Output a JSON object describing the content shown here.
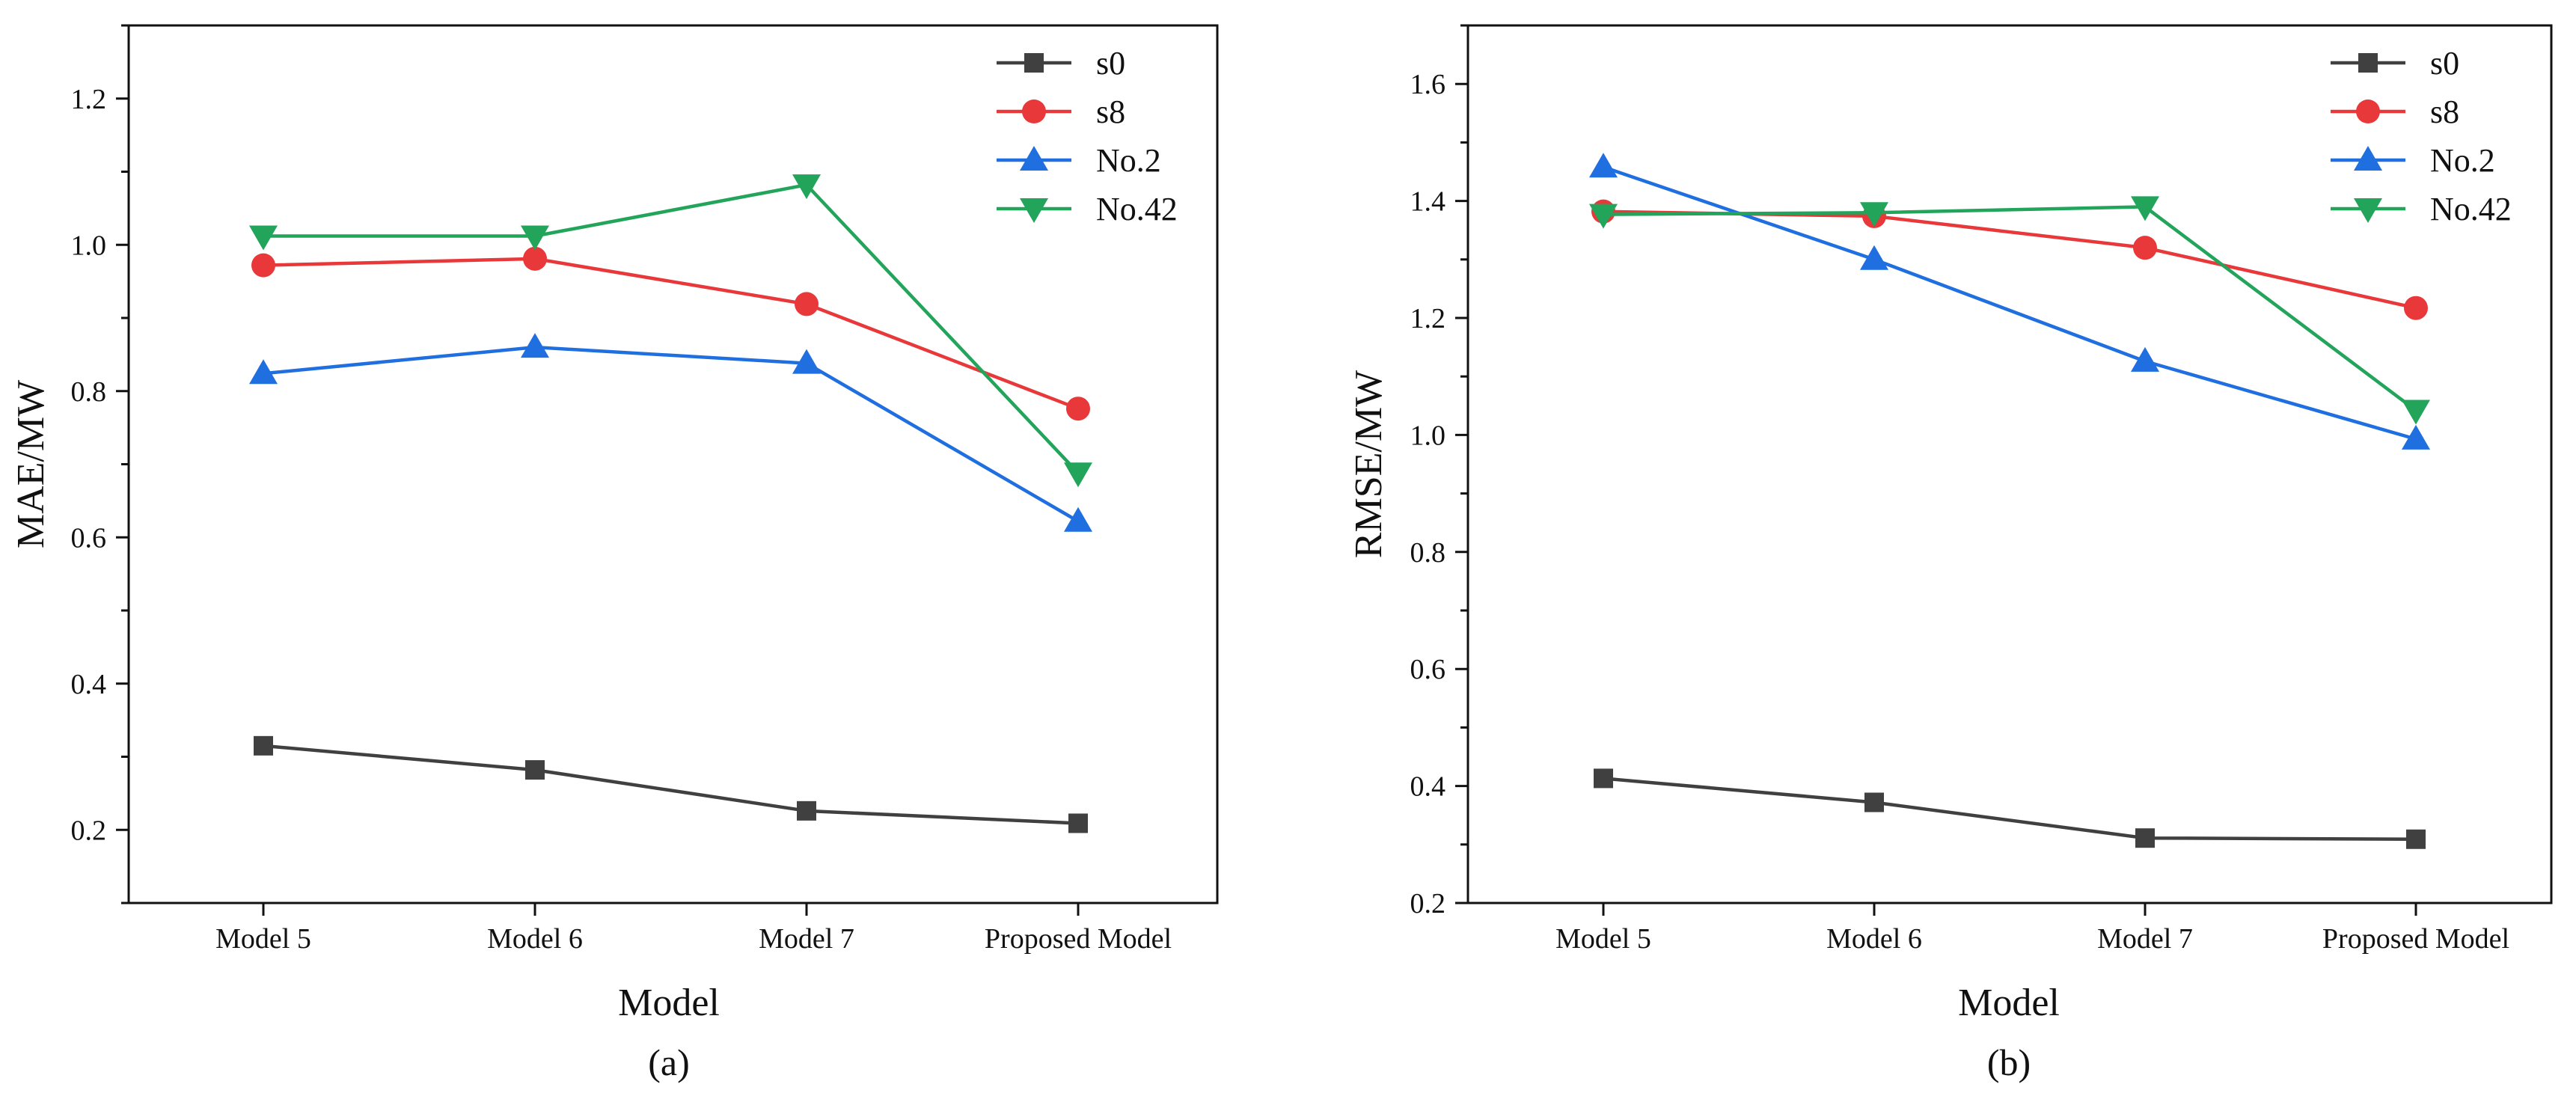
{
  "chart_data": [
    {
      "id": "a",
      "type": "line",
      "caption": "(a)",
      "xlabel": "Model",
      "ylabel": "MAE/MW",
      "categories": [
        "Model 5",
        "Model 6",
        "Model 7",
        "Proposed Model"
      ],
      "ylim": [
        0.1,
        1.3
      ],
      "yticks": [
        0.2,
        0.4,
        0.6,
        0.8,
        1.0,
        1.2
      ],
      "ytick_labels": [
        "0.2",
        "0.4",
        "0.6",
        "0.8",
        "1.0",
        "1.2"
      ],
      "legend_position": "top-right",
      "series": [
        {
          "name": "s0",
          "marker": "square",
          "color": "#404040",
          "values": [
            0.315,
            0.282,
            0.226,
            0.209
          ]
        },
        {
          "name": "s8",
          "marker": "circle",
          "color": "#e8383a",
          "values": [
            0.972,
            0.981,
            0.919,
            0.776
          ]
        },
        {
          "name": "No.2",
          "marker": "triangle-up",
          "color": "#1f6fe0",
          "values": [
            0.824,
            0.86,
            0.838,
            0.622
          ]
        },
        {
          "name": "No.42",
          "marker": "triangle-down",
          "color": "#22a55a",
          "values": [
            1.012,
            1.012,
            1.082,
            0.688
          ]
        }
      ]
    },
    {
      "id": "b",
      "type": "line",
      "caption": "(b)",
      "xlabel": "Model",
      "ylabel": "RMSE/MW",
      "categories": [
        "Model 5",
        "Model 6",
        "Model 7",
        "Proposed Model"
      ],
      "ylim": [
        0.2,
        1.7
      ],
      "yticks": [
        0.2,
        0.4,
        0.6,
        0.8,
        1.0,
        1.2,
        1.4,
        1.6
      ],
      "ytick_labels": [
        "0.2",
        "0.4",
        "0.6",
        "0.8",
        "1.0",
        "1.2",
        "1.4",
        "1.6"
      ],
      "legend_position": "top-right",
      "series": [
        {
          "name": "s0",
          "marker": "square",
          "color": "#404040",
          "values": [
            0.413,
            0.372,
            0.311,
            0.309
          ]
        },
        {
          "name": "s8",
          "marker": "circle",
          "color": "#e8383a",
          "values": [
            1.382,
            1.374,
            1.32,
            1.217
          ]
        },
        {
          "name": "No.2",
          "marker": "triangle-up",
          "color": "#1f6fe0",
          "values": [
            1.458,
            1.3,
            1.126,
            0.993
          ]
        },
        {
          "name": "No.42",
          "marker": "triangle-down",
          "color": "#22a55a",
          "values": [
            1.377,
            1.38,
            1.39,
            1.042
          ]
        }
      ]
    }
  ]
}
